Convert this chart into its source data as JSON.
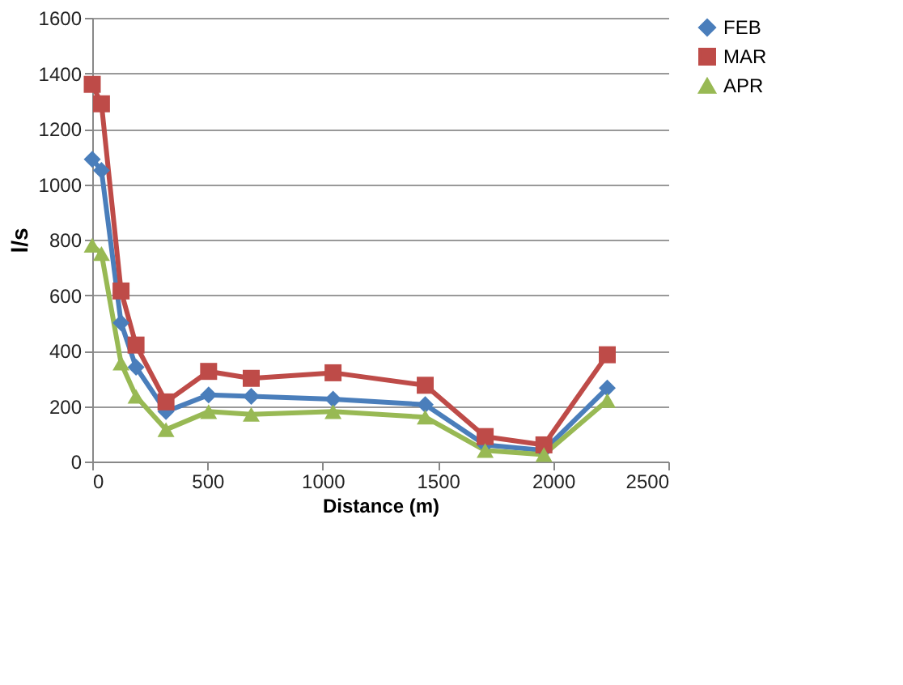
{
  "chart_data": {
    "type": "line",
    "xlabel": "Distance (m)",
    "ylabel": "l/s",
    "x": [
      0,
      40,
      125,
      190,
      320,
      505,
      690,
      1045,
      1445,
      1705,
      1960,
      2235
    ],
    "series": [
      {
        "name": "FEB",
        "color": "#4a7ebb",
        "marker": "diamond",
        "values": [
          1090,
          1050,
          500,
          340,
          180,
          240,
          235,
          225,
          205,
          60,
          40,
          265
        ]
      },
      {
        "name": "MAR",
        "color": "#be4b48",
        "marker": "square",
        "values": [
          1360,
          1290,
          615,
          420,
          215,
          325,
          300,
          320,
          275,
          90,
          60,
          385
        ]
      },
      {
        "name": "APR",
        "color": "#98b954",
        "marker": "triangle",
        "values": [
          780,
          750,
          355,
          235,
          115,
          180,
          170,
          180,
          160,
          40,
          25,
          220
        ]
      }
    ],
    "xlim": [
      0,
      2500
    ],
    "xticks": [
      0,
      500,
      1000,
      1500,
      2000,
      2500
    ],
    "ylim": [
      0,
      1600
    ],
    "yticks": [
      0,
      200,
      400,
      600,
      800,
      1000,
      1200,
      1400,
      1600
    ],
    "grid": "y",
    "legend": "right",
    "line_style": "solid"
  }
}
